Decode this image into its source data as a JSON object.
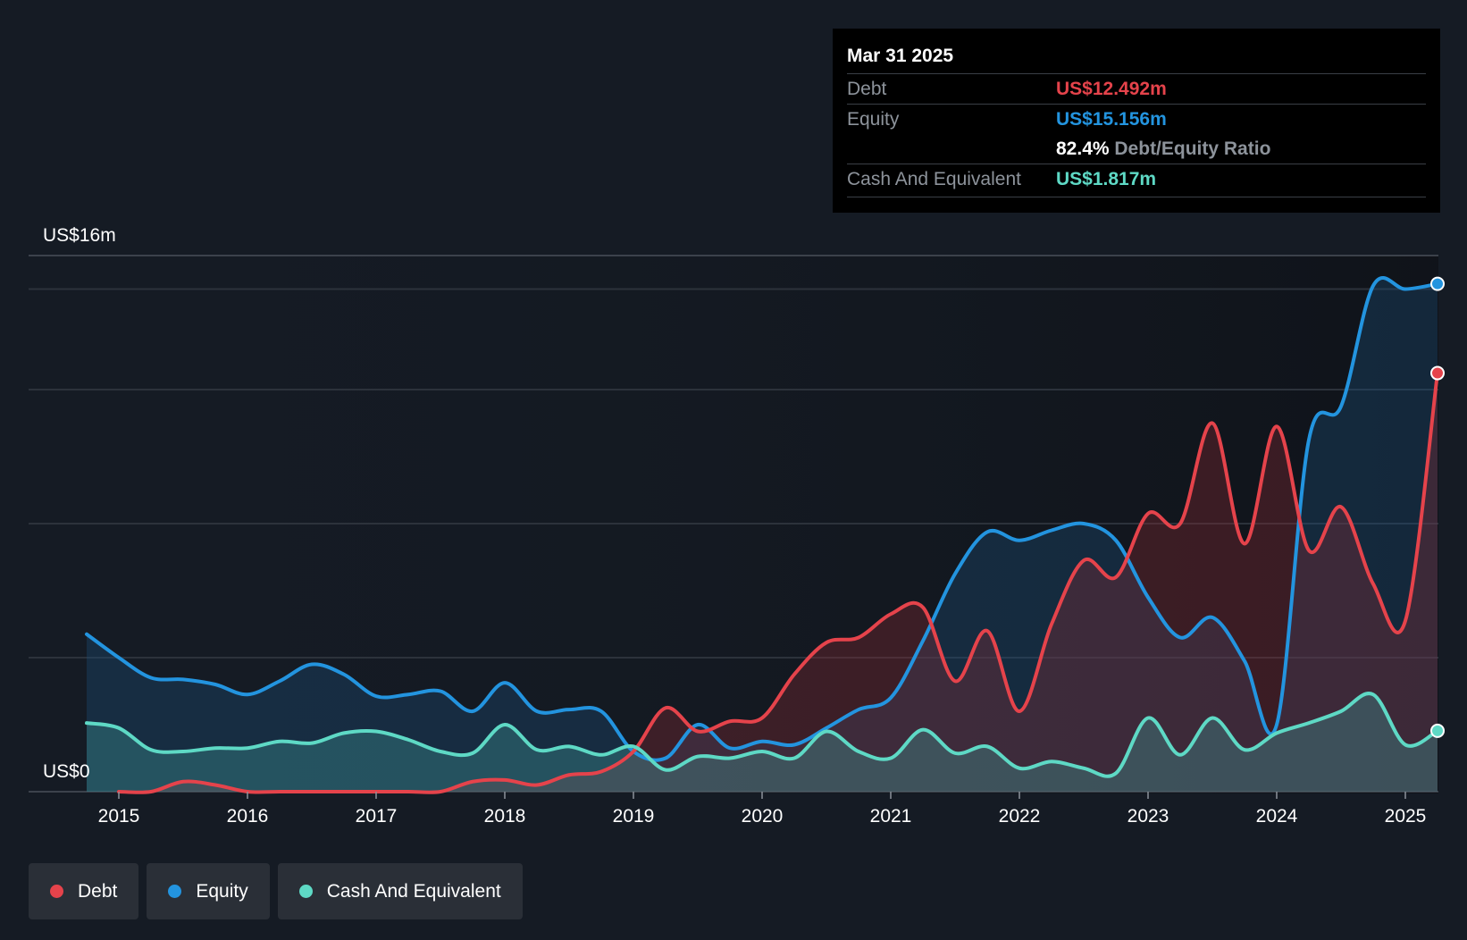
{
  "chart_data": {
    "type": "area",
    "ylabel_top": "US$16m",
    "ylabel_bottom": "US$0",
    "ylim": [
      0,
      16
    ],
    "xlim": [
      2014.75,
      2025.25
    ],
    "x_ticks": [
      "2015",
      "2016",
      "2017",
      "2018",
      "2019",
      "2020",
      "2021",
      "2022",
      "2023",
      "2024",
      "2025"
    ],
    "grid": true,
    "legend_position": "bottom-left",
    "series": [
      {
        "name": "Equity",
        "color": "#2394df",
        "x": [
          2014.75,
          2015.0,
          2015.25,
          2015.5,
          2015.75,
          2016.0,
          2016.25,
          2016.5,
          2016.75,
          2017.0,
          2017.25,
          2017.5,
          2017.75,
          2018.0,
          2018.25,
          2018.5,
          2018.75,
          2019.0,
          2019.25,
          2019.5,
          2019.75,
          2020.0,
          2020.25,
          2020.5,
          2020.75,
          2021.0,
          2021.25,
          2021.5,
          2021.75,
          2022.0,
          2022.25,
          2022.5,
          2022.75,
          2023.0,
          2023.25,
          2023.5,
          2023.75,
          2024.0,
          2024.25,
          2024.5,
          2024.75,
          2025.0,
          2025.25
        ],
        "values": [
          4.7,
          4.0,
          3.4,
          3.35,
          3.2,
          2.9,
          3.3,
          3.8,
          3.5,
          2.85,
          2.9,
          3.0,
          2.4,
          3.25,
          2.4,
          2.45,
          2.4,
          1.2,
          1.0,
          2.0,
          1.3,
          1.5,
          1.4,
          1.9,
          2.45,
          2.8,
          4.5,
          6.5,
          7.75,
          7.5,
          7.8,
          8.0,
          7.5,
          5.8,
          4.6,
          5.2,
          3.9,
          2.0,
          10.5,
          11.5,
          15.1,
          15.0,
          15.156
        ]
      },
      {
        "name": "Debt",
        "color": "#e5434b",
        "x": [
          2015.0,
          2015.25,
          2015.5,
          2015.75,
          2016.0,
          2016.25,
          2016.5,
          2016.75,
          2017.0,
          2017.25,
          2017.5,
          2017.75,
          2018.0,
          2018.25,
          2018.5,
          2018.75,
          2019.0,
          2019.25,
          2019.5,
          2019.75,
          2020.0,
          2020.25,
          2020.5,
          2020.75,
          2021.0,
          2021.25,
          2021.5,
          2021.75,
          2022.0,
          2022.25,
          2022.5,
          2022.75,
          2023.0,
          2023.25,
          2023.5,
          2023.75,
          2024.0,
          2024.25,
          2024.5,
          2024.75,
          2025.0,
          2025.25
        ],
        "values": [
          0.0,
          0.0,
          0.3,
          0.2,
          0.0,
          0.0,
          0.0,
          0.0,
          0.0,
          0.0,
          0.0,
          0.3,
          0.35,
          0.2,
          0.5,
          0.6,
          1.2,
          2.5,
          1.8,
          2.1,
          2.2,
          3.5,
          4.45,
          4.6,
          5.3,
          5.5,
          3.3,
          4.8,
          2.4,
          5.0,
          6.9,
          6.4,
          8.3,
          8.0,
          11.0,
          7.4,
          10.9,
          7.2,
          8.5,
          6.2,
          5.1,
          12.492
        ]
      },
      {
        "name": "Cash And Equivalent",
        "color": "#5ed9c5",
        "x": [
          2014.75,
          2015.0,
          2015.25,
          2015.5,
          2015.75,
          2016.0,
          2016.25,
          2016.5,
          2016.75,
          2017.0,
          2017.25,
          2017.5,
          2017.75,
          2018.0,
          2018.25,
          2018.5,
          2018.75,
          2019.0,
          2019.25,
          2019.5,
          2019.75,
          2020.0,
          2020.25,
          2020.5,
          2020.75,
          2021.0,
          2021.25,
          2021.5,
          2021.75,
          2022.0,
          2022.25,
          2022.5,
          2022.75,
          2023.0,
          2023.25,
          2023.5,
          2023.75,
          2024.0,
          2024.25,
          2024.5,
          2024.75,
          2025.0,
          2025.25
        ],
        "values": [
          2.05,
          1.9,
          1.25,
          1.2,
          1.3,
          1.3,
          1.5,
          1.45,
          1.75,
          1.8,
          1.55,
          1.2,
          1.15,
          2.0,
          1.25,
          1.35,
          1.1,
          1.35,
          0.65,
          1.05,
          1.0,
          1.2,
          1.0,
          1.8,
          1.2,
          1.0,
          1.85,
          1.15,
          1.35,
          0.7,
          0.9,
          0.7,
          0.55,
          2.2,
          1.1,
          2.2,
          1.25,
          1.75,
          2.05,
          2.4,
          2.9,
          1.4,
          1.817
        ]
      }
    ]
  },
  "tooltip": {
    "date": "Mar 31 2025",
    "debt_label": "Debt",
    "debt_value": "US$12.492m",
    "equity_label": "Equity",
    "equity_value": "US$15.156m",
    "ratio_value": "82.4%",
    "ratio_label": "Debt/Equity Ratio",
    "cash_label": "Cash And Equivalent",
    "cash_value": "US$1.817m"
  },
  "legend": [
    {
      "label": "Debt",
      "color": "#e5434b"
    },
    {
      "label": "Equity",
      "color": "#2394df"
    },
    {
      "label": "Cash And Equivalent",
      "color": "#5ed9c5"
    }
  ]
}
